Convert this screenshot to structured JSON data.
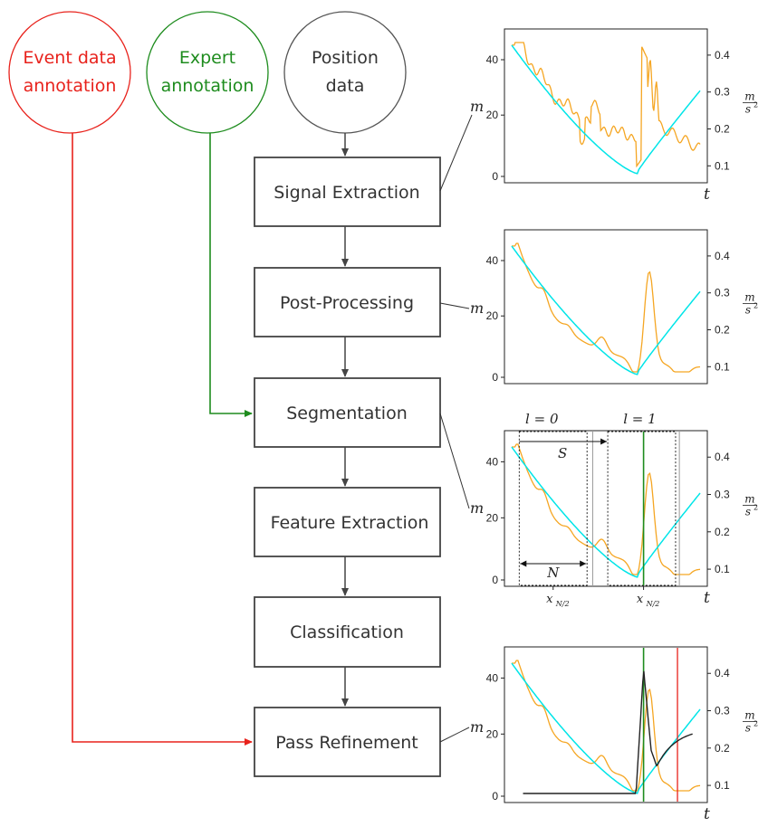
{
  "sources": [
    {
      "id": "event",
      "lines": [
        "Event data",
        "annotation"
      ],
      "color": "#e8221c"
    },
    {
      "id": "expert",
      "lines": [
        "Expert",
        "annotation"
      ],
      "color": "#1e8c1e"
    },
    {
      "id": "position",
      "lines": [
        "Position",
        "data"
      ],
      "color": "#333333"
    }
  ],
  "pipeline": [
    {
      "label": "Signal Extraction"
    },
    {
      "label": "Post-Processing"
    },
    {
      "label": "Segmentation"
    },
    {
      "label": "Feature Extraction"
    },
    {
      "label": "Classification"
    },
    {
      "label": "Pass Refinement"
    }
  ],
  "colors": {
    "distance": "#00e5e8",
    "accel": "#f5a623",
    "expert": "#1e8c1e",
    "event": "#e8221c",
    "prediction": "#222222",
    "box": "#444444"
  },
  "axes": {
    "left_ticks": [
      "0",
      "20",
      "40"
    ],
    "right_ticks": [
      "0.1",
      "0.2",
      "0.3",
      "0.4"
    ],
    "left_unit": "m",
    "right_unit_num": "m",
    "right_unit_den": "s",
    "right_unit_exp": "2",
    "x_label": "t"
  },
  "segmentation": {
    "label_l0": "l = 0",
    "label_l1": "l = 1",
    "label_S": "S",
    "label_N": "N",
    "xlabel_left": "x",
    "xlabel_right": "x",
    "xlabel_sub": "N/2"
  }
}
